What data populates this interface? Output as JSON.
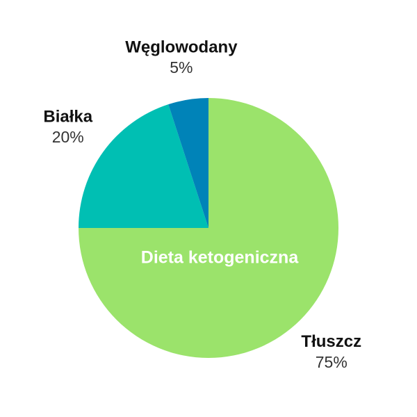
{
  "chart_data": {
    "type": "pie",
    "title": "Dieta ketogeniczna",
    "categories": [
      "Tłuszcz",
      "Białka",
      "Węglowodany"
    ],
    "values": [
      75,
      20,
      5
    ],
    "value_labels": [
      "75%",
      "20%",
      "5%"
    ],
    "colors": [
      "#9be36b",
      "#00bfb3",
      "#0083b8"
    ]
  }
}
